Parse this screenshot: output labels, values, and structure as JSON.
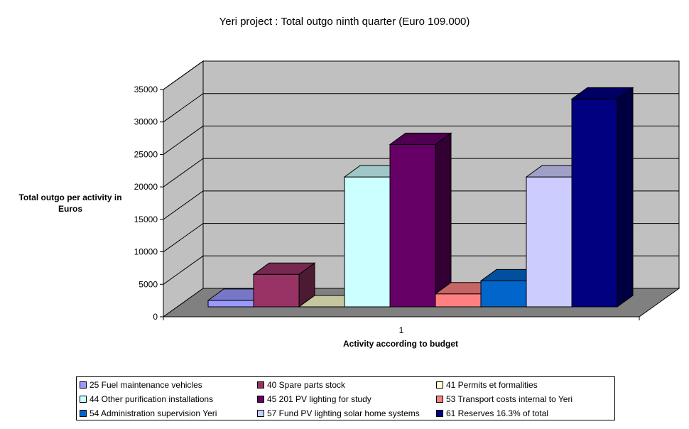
{
  "chart_data": {
    "type": "bar",
    "title": "Yeri project : Total outgo ninth quarter (Euro 109.000)",
    "xlabel": "Activity according to budget",
    "ylabel": "Total outgo per activity in Euros",
    "categories": [
      "1"
    ],
    "ylim": [
      0,
      35000
    ],
    "yticks": [
      0,
      5000,
      10000,
      15000,
      20000,
      25000,
      30000,
      35000
    ],
    "grid": true,
    "legend_position": "bottom",
    "style": "3d-clustered-column",
    "series": [
      {
        "name": "25 Fuel maintenance vehicles",
        "values": [
          1000
        ],
        "color": "#9999ff"
      },
      {
        "name": "40 Spare parts stock",
        "values": [
          5000
        ],
        "color": "#993366"
      },
      {
        "name": "41 Permits et formalities",
        "values": [
          0
        ],
        "color": "#ffffcc"
      },
      {
        "name": "44 Other purification installations",
        "values": [
          20000
        ],
        "color": "#ccffff"
      },
      {
        "name": "45 201 PV lighting for study",
        "values": [
          25000
        ],
        "color": "#660066"
      },
      {
        "name": "53 Transport costs internal to Yeri",
        "values": [
          2000
        ],
        "color": "#ff8080"
      },
      {
        "name": "54 Administration supervision Yeri",
        "values": [
          4000
        ],
        "color": "#0066cc"
      },
      {
        "name": "57 Fund PV lighting solar home systems",
        "values": [
          20000
        ],
        "color": "#ccccff"
      },
      {
        "name": "61 Reserves 16.3% of total",
        "values": [
          32000
        ],
        "color": "#000080"
      }
    ]
  }
}
